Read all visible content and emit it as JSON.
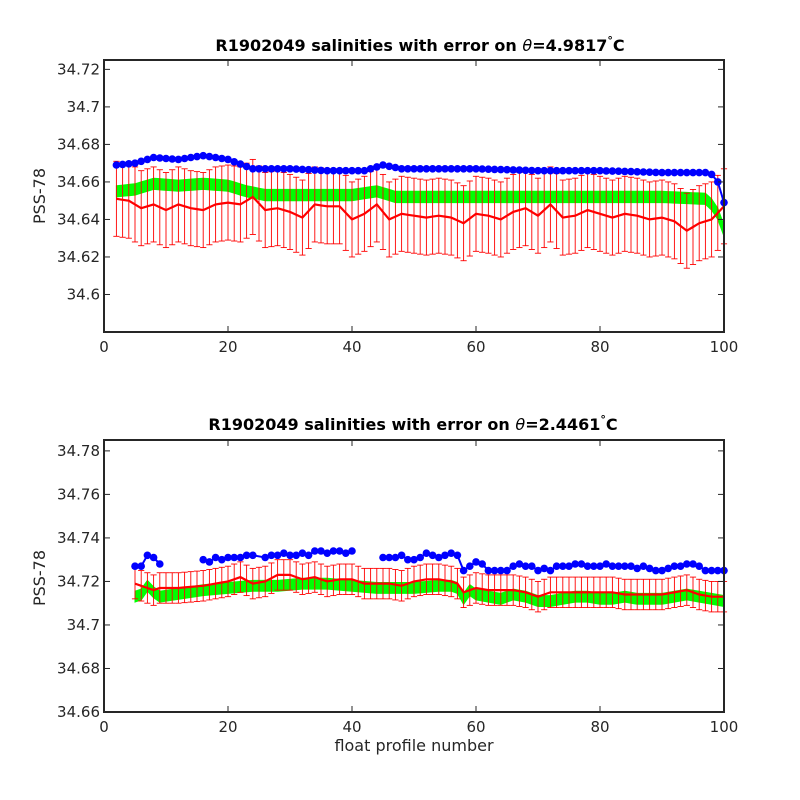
{
  "chart_data": [
    {
      "type": "line",
      "title_prefix": "R1902049 salinities with error on ",
      "theta_symbol": "θ",
      "title_value": "=4.9817",
      "degree_symbol": "°",
      "title_unit": "C",
      "xlabel": "",
      "ylabel": "PSS-78",
      "xlim": [
        0,
        100
      ],
      "ylim": [
        34.58,
        34.725
      ],
      "xticks": [
        0,
        20,
        40,
        60,
        80,
        100
      ],
      "xtick_labels": [
        "0",
        "20",
        "40",
        "60",
        "80",
        "100"
      ],
      "yticks": [
        34.6,
        34.62,
        34.64,
        34.66,
        34.68,
        34.7,
        34.72
      ],
      "ytick_labels": [
        "34.6",
        "34.62",
        "34.64",
        "34.66",
        "34.68",
        "34.7",
        "34.72"
      ],
      "colors": {
        "blue": "#0000ff",
        "green": "#00ff00",
        "red": "#ff0000"
      },
      "blue_series": {
        "x_start": 2,
        "x_end": 100,
        "anchors": [
          [
            2,
            34.669
          ],
          [
            5,
            34.67
          ],
          [
            8,
            34.673
          ],
          [
            12,
            34.672
          ],
          [
            16,
            34.674
          ],
          [
            20,
            34.672
          ],
          [
            24,
            34.667
          ],
          [
            30,
            34.667
          ],
          [
            36,
            34.666
          ],
          [
            42,
            34.666
          ],
          [
            45,
            34.669
          ],
          [
            48,
            34.667
          ],
          [
            52,
            34.667
          ],
          [
            60,
            34.667
          ],
          [
            70,
            34.666
          ],
          [
            80,
            34.666
          ],
          [
            90,
            34.665
          ],
          [
            97,
            34.665
          ],
          [
            98,
            34.664
          ],
          [
            99,
            34.66
          ],
          [
            100,
            34.649
          ]
        ],
        "marker_size": 4
      },
      "green_series": {
        "x_start": 2,
        "x_end": 100,
        "anchors": [
          [
            2,
            34.655
          ],
          [
            5,
            34.656
          ],
          [
            8,
            34.659
          ],
          [
            12,
            34.658
          ],
          [
            16,
            34.659
          ],
          [
            20,
            34.658
          ],
          [
            23,
            34.655
          ],
          [
            26,
            34.653
          ],
          [
            40,
            34.653
          ],
          [
            44,
            34.655
          ],
          [
            47,
            34.652
          ],
          [
            60,
            34.652
          ],
          [
            70,
            34.652
          ],
          [
            80,
            34.652
          ],
          [
            90,
            34.652
          ],
          [
            97,
            34.651
          ],
          [
            98,
            34.648
          ],
          [
            99,
            34.643
          ],
          [
            100,
            34.634
          ]
        ],
        "band_half_width": 0.003
      },
      "red_series": {
        "x_start": 2,
        "x_end": 100,
        "anchors": [
          [
            2,
            34.651
          ],
          [
            4,
            34.65
          ],
          [
            6,
            34.646
          ],
          [
            8,
            34.648
          ],
          [
            10,
            34.645
          ],
          [
            12,
            34.648
          ],
          [
            14,
            34.646
          ],
          [
            16,
            34.645
          ],
          [
            18,
            34.648
          ],
          [
            20,
            34.649
          ],
          [
            22,
            34.648
          ],
          [
            24,
            34.652
          ],
          [
            26,
            34.645
          ],
          [
            28,
            34.646
          ],
          [
            30,
            34.644
          ],
          [
            32,
            34.641
          ],
          [
            34,
            34.648
          ],
          [
            36,
            34.647
          ],
          [
            38,
            34.647
          ],
          [
            40,
            34.64
          ],
          [
            42,
            34.643
          ],
          [
            44,
            34.648
          ],
          [
            46,
            34.64
          ],
          [
            48,
            34.643
          ],
          [
            50,
            34.642
          ],
          [
            52,
            34.641
          ],
          [
            54,
            34.642
          ],
          [
            56,
            34.641
          ],
          [
            58,
            34.638
          ],
          [
            60,
            34.643
          ],
          [
            62,
            34.642
          ],
          [
            64,
            34.64
          ],
          [
            66,
            34.644
          ],
          [
            68,
            34.646
          ],
          [
            70,
            34.642
          ],
          [
            72,
            34.648
          ],
          [
            74,
            34.641
          ],
          [
            76,
            34.642
          ],
          [
            78,
            34.645
          ],
          [
            80,
            34.643
          ],
          [
            82,
            34.641
          ],
          [
            84,
            34.643
          ],
          [
            86,
            34.642
          ],
          [
            88,
            34.64
          ],
          [
            90,
            34.641
          ],
          [
            92,
            34.639
          ],
          [
            94,
            34.634
          ],
          [
            96,
            34.638
          ],
          [
            98,
            34.64
          ],
          [
            100,
            34.647
          ]
        ],
        "error": 0.02,
        "cap_width": 0.5
      }
    },
    {
      "type": "line",
      "title_prefix": "R1902049 salinities with error on ",
      "theta_symbol": "θ",
      "title_value": "=2.4461",
      "degree_symbol": "°",
      "title_unit": "C",
      "xlabel": "float profile number",
      "ylabel": "PSS-78",
      "xlim": [
        0,
        100
      ],
      "ylim": [
        34.66,
        34.785
      ],
      "xticks": [
        0,
        20,
        40,
        60,
        80,
        100
      ],
      "xtick_labels": [
        "0",
        "20",
        "40",
        "60",
        "80",
        "100"
      ],
      "yticks": [
        34.66,
        34.68,
        34.7,
        34.72,
        34.74,
        34.76,
        34.78
      ],
      "ytick_labels": [
        "34.66",
        "34.68",
        "34.7",
        "34.72",
        "34.74",
        "34.76",
        "34.78"
      ],
      "colors": {
        "blue": "#0000ff",
        "green": "#00ff00",
        "red": "#ff0000"
      },
      "blue_segments": [
        [
          [
            5,
            34.727
          ],
          [
            6,
            34.727
          ],
          [
            7,
            34.732
          ],
          [
            8,
            34.731
          ],
          [
            9,
            34.728
          ]
        ],
        [
          [
            16,
            34.73
          ],
          [
            17,
            34.729
          ],
          [
            18,
            34.731
          ],
          [
            19,
            34.73
          ],
          [
            20,
            34.731
          ],
          [
            21,
            34.731
          ],
          [
            22,
            34.731
          ],
          [
            23,
            34.732
          ],
          [
            24,
            34.732
          ],
          [
            26,
            34.731
          ],
          [
            27,
            34.732
          ],
          [
            28,
            34.732
          ],
          [
            29,
            34.733
          ],
          [
            30,
            34.732
          ],
          [
            31,
            34.732
          ],
          [
            32,
            34.733
          ],
          [
            33,
            34.732
          ],
          [
            34,
            34.734
          ],
          [
            35,
            34.734
          ],
          [
            36,
            34.733
          ],
          [
            37,
            34.734
          ],
          [
            38,
            34.734
          ],
          [
            39,
            34.733
          ],
          [
            40,
            34.734
          ]
        ],
        [
          [
            45,
            34.731
          ],
          [
            46,
            34.731
          ],
          [
            47,
            34.731
          ],
          [
            48,
            34.732
          ],
          [
            49,
            34.73
          ],
          [
            50,
            34.73
          ],
          [
            51,
            34.731
          ],
          [
            52,
            34.733
          ],
          [
            53,
            34.732
          ],
          [
            54,
            34.731
          ],
          [
            55,
            34.732
          ],
          [
            56,
            34.733
          ],
          [
            57,
            34.732
          ],
          [
            58,
            34.725
          ],
          [
            59,
            34.727
          ],
          [
            60,
            34.729
          ],
          [
            61,
            34.728
          ],
          [
            62,
            34.725
          ],
          [
            63,
            34.725
          ],
          [
            64,
            34.725
          ],
          [
            65,
            34.725
          ],
          [
            66,
            34.727
          ],
          [
            67,
            34.728
          ],
          [
            68,
            34.727
          ],
          [
            69,
            34.727
          ],
          [
            70,
            34.725
          ],
          [
            71,
            34.726
          ],
          [
            72,
            34.725
          ],
          [
            73,
            34.727
          ],
          [
            74,
            34.727
          ],
          [
            75,
            34.727
          ],
          [
            76,
            34.728
          ],
          [
            77,
            34.728
          ],
          [
            78,
            34.727
          ],
          [
            79,
            34.727
          ],
          [
            80,
            34.727
          ],
          [
            81,
            34.728
          ],
          [
            82,
            34.727
          ],
          [
            83,
            34.727
          ],
          [
            84,
            34.727
          ],
          [
            85,
            34.727
          ],
          [
            86,
            34.726
          ],
          [
            87,
            34.727
          ],
          [
            88,
            34.726
          ],
          [
            89,
            34.725
          ],
          [
            90,
            34.725
          ],
          [
            91,
            34.726
          ],
          [
            92,
            34.727
          ],
          [
            93,
            34.727
          ],
          [
            94,
            34.728
          ],
          [
            95,
            34.728
          ],
          [
            96,
            34.727
          ],
          [
            97,
            34.725
          ],
          [
            98,
            34.725
          ],
          [
            99,
            34.725
          ],
          [
            100,
            34.725
          ]
        ]
      ],
      "green_series": {
        "anchors": [
          [
            5,
            34.713
          ],
          [
            6,
            34.714
          ],
          [
            7,
            34.718
          ],
          [
            8,
            34.715
          ],
          [
            9,
            34.713
          ],
          [
            16,
            34.716
          ],
          [
            20,
            34.717
          ],
          [
            24,
            34.718
          ],
          [
            28,
            34.718
          ],
          [
            32,
            34.719
          ],
          [
            36,
            34.719
          ],
          [
            40,
            34.718
          ],
          [
            44,
            34.717
          ],
          [
            50,
            34.717
          ],
          [
            54,
            34.718
          ],
          [
            56,
            34.718
          ],
          [
            57,
            34.717
          ],
          [
            58,
            34.712
          ],
          [
            59,
            34.716
          ],
          [
            60,
            34.714
          ],
          [
            62,
            34.713
          ],
          [
            64,
            34.712
          ],
          [
            66,
            34.714
          ],
          [
            68,
            34.713
          ],
          [
            70,
            34.711
          ],
          [
            72,
            34.711
          ],
          [
            74,
            34.712
          ],
          [
            76,
            34.713
          ],
          [
            78,
            34.713
          ],
          [
            80,
            34.712
          ],
          [
            82,
            34.712
          ],
          [
            84,
            34.713
          ],
          [
            86,
            34.712
          ],
          [
            88,
            34.712
          ],
          [
            90,
            34.712
          ],
          [
            92,
            34.713
          ],
          [
            94,
            34.714
          ],
          [
            96,
            34.713
          ],
          [
            98,
            34.712
          ],
          [
            100,
            34.711
          ]
        ],
        "band_half_width": 0.0025
      },
      "red_series": {
        "x_start": 5,
        "x_end": 100,
        "anchors": [
          [
            5,
            34.719
          ],
          [
            6,
            34.718
          ],
          [
            7,
            34.717
          ],
          [
            8,
            34.716
          ],
          [
            9,
            34.717
          ],
          [
            12,
            34.717
          ],
          [
            16,
            34.718
          ],
          [
            20,
            34.72
          ],
          [
            22,
            34.722
          ],
          [
            24,
            34.719
          ],
          [
            26,
            34.72
          ],
          [
            28,
            34.723
          ],
          [
            30,
            34.723
          ],
          [
            32,
            34.721
          ],
          [
            34,
            34.722
          ],
          [
            36,
            34.72
          ],
          [
            38,
            34.721
          ],
          [
            40,
            34.721
          ],
          [
            42,
            34.719
          ],
          [
            44,
            34.719
          ],
          [
            46,
            34.719
          ],
          [
            48,
            34.718
          ],
          [
            50,
            34.72
          ],
          [
            52,
            34.721
          ],
          [
            54,
            34.721
          ],
          [
            56,
            34.72
          ],
          [
            57,
            34.719
          ],
          [
            58,
            34.715
          ],
          [
            60,
            34.717
          ],
          [
            62,
            34.716
          ],
          [
            64,
            34.716
          ],
          [
            66,
            34.716
          ],
          [
            68,
            34.715
          ],
          [
            70,
            34.713
          ],
          [
            72,
            34.715
          ],
          [
            74,
            34.715
          ],
          [
            76,
            34.715
          ],
          [
            78,
            34.715
          ],
          [
            80,
            34.715
          ],
          [
            82,
            34.715
          ],
          [
            84,
            34.714
          ],
          [
            86,
            34.714
          ],
          [
            88,
            34.714
          ],
          [
            90,
            34.714
          ],
          [
            92,
            34.715
          ],
          [
            94,
            34.716
          ],
          [
            96,
            34.714
          ],
          [
            98,
            34.713
          ],
          [
            100,
            34.713
          ]
        ],
        "error": 0.007,
        "cap_width": 0.5
      }
    }
  ]
}
